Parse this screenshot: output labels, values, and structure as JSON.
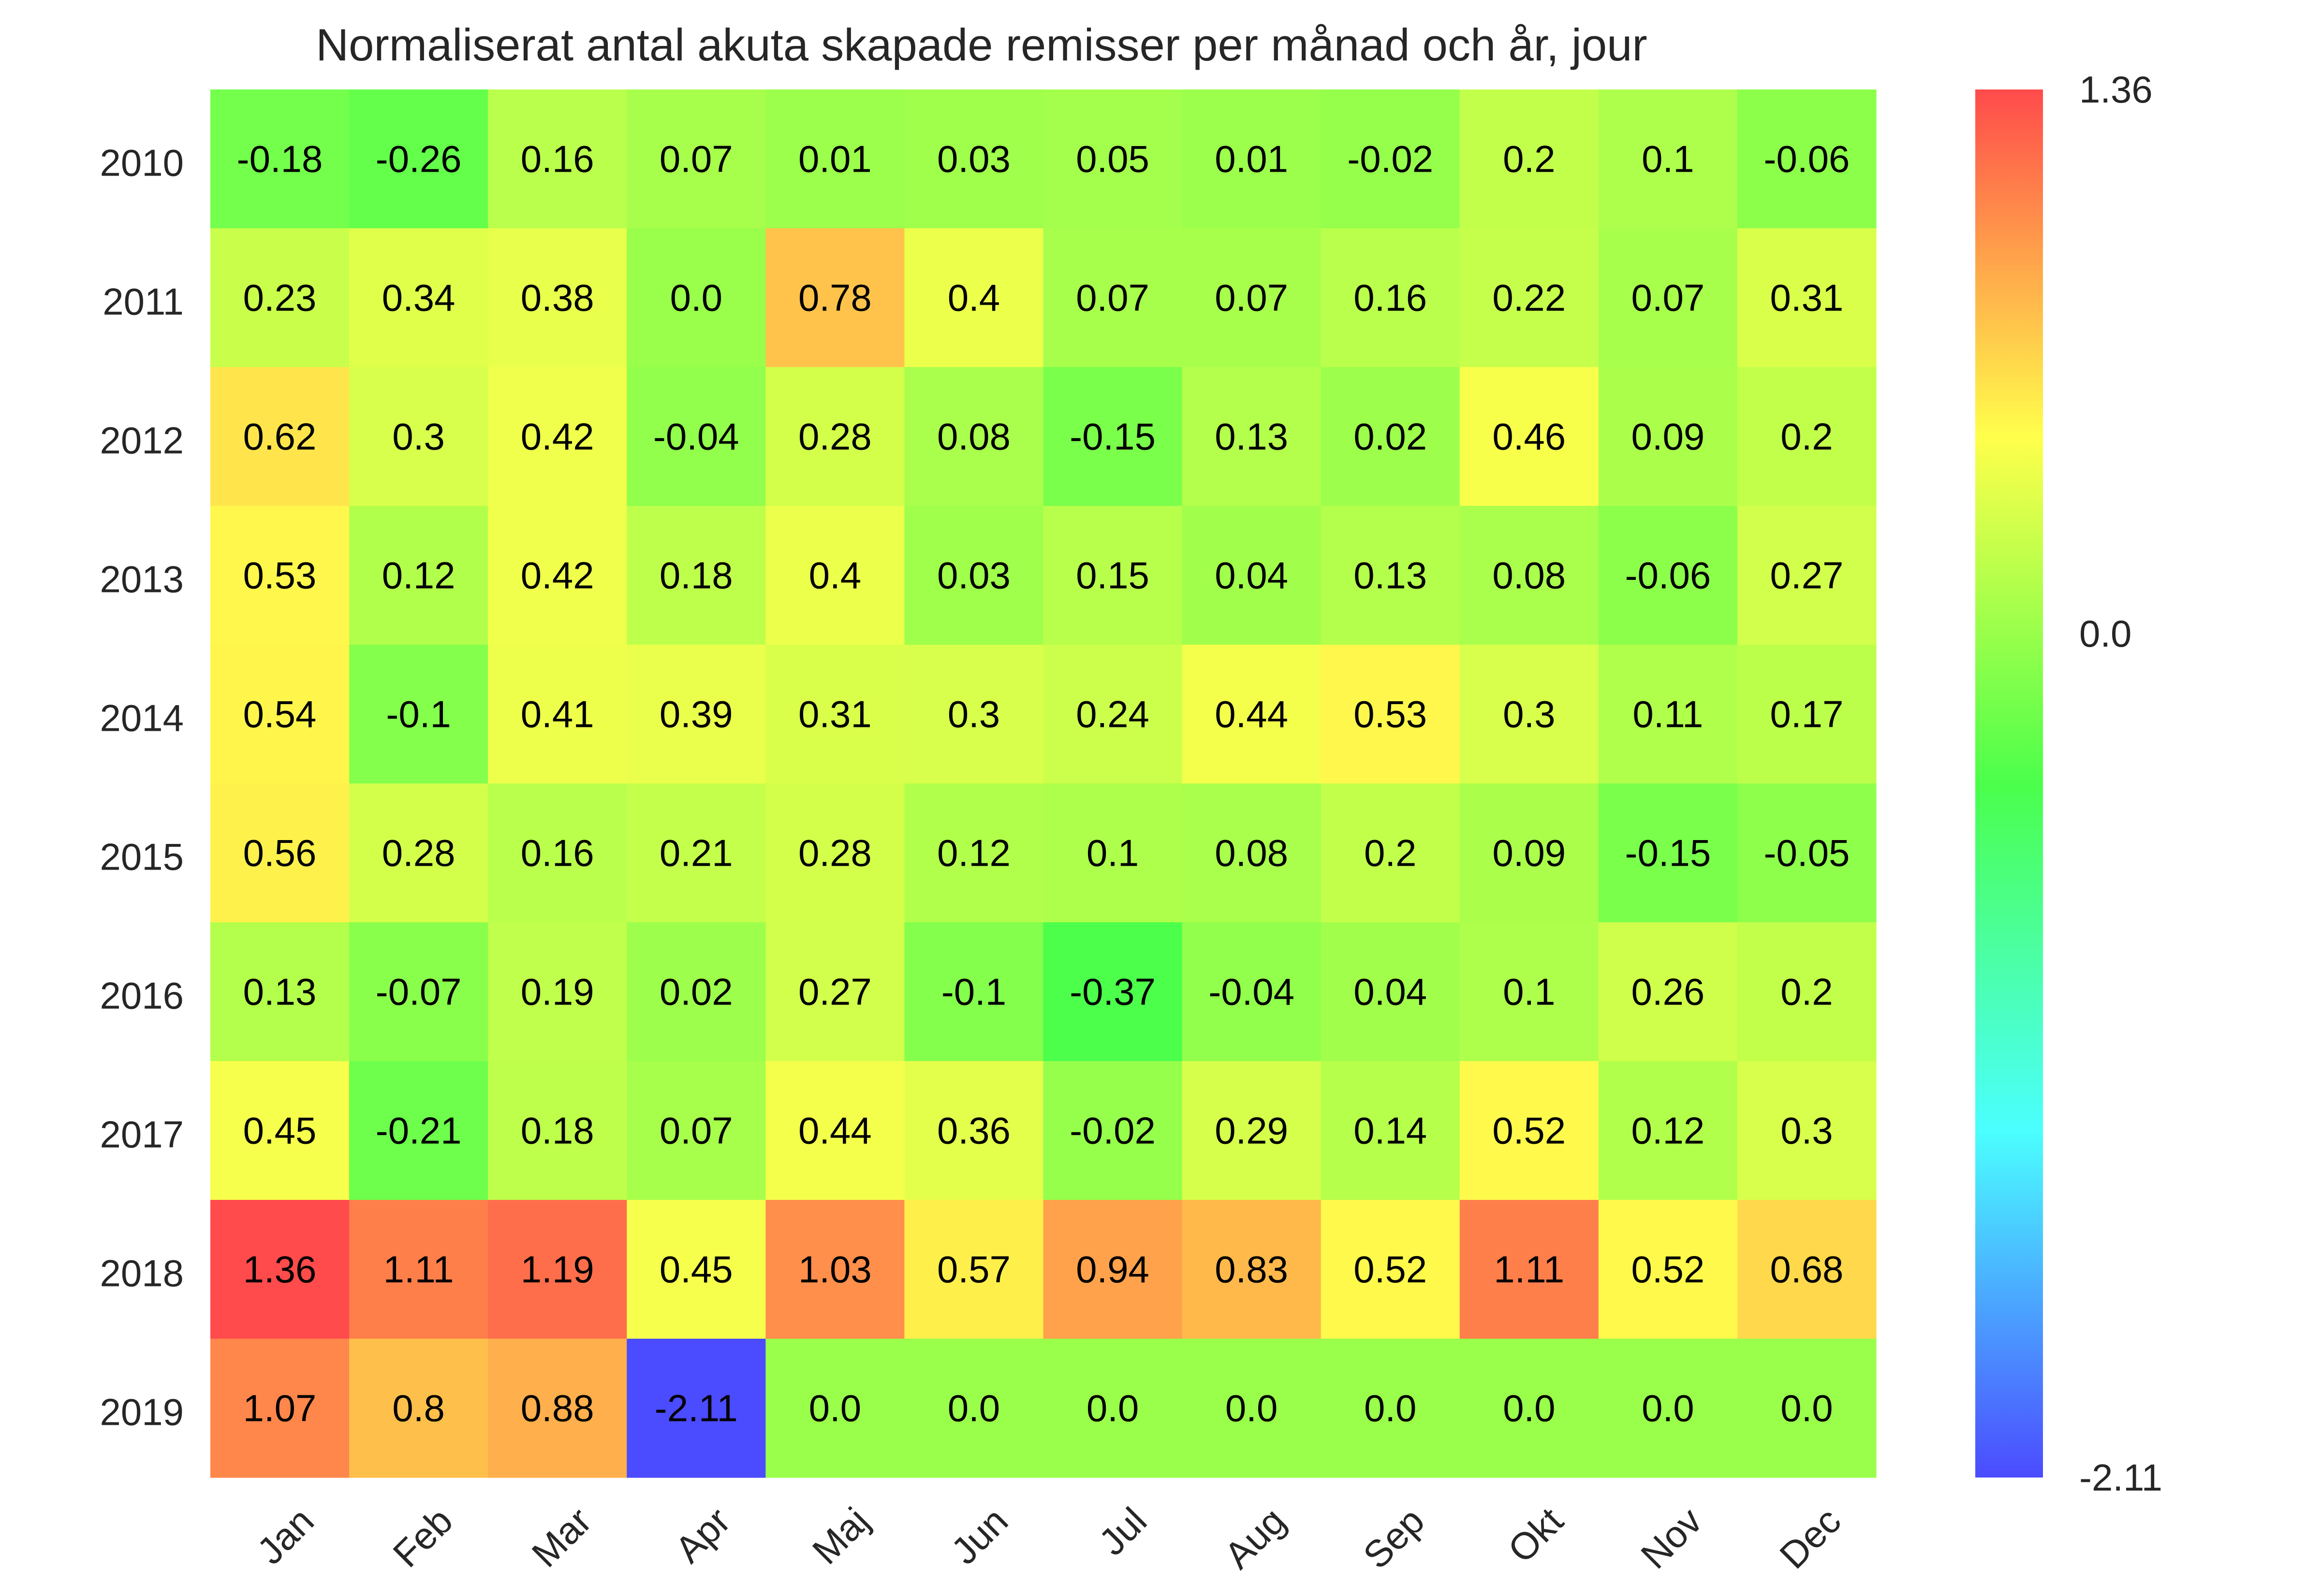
{
  "chart_data": {
    "type": "heatmap",
    "title": "Normaliserat antal akuta skapade remisser per månad och år, jour",
    "xlabel": "",
    "ylabel": "",
    "x_categories": [
      "Jan",
      "Feb",
      "Mar",
      "Apr",
      "Maj",
      "Jun",
      "Jul",
      "Aug",
      "Sep",
      "Okt",
      "Nov",
      "Dec"
    ],
    "y_categories": [
      "2010",
      "2011",
      "2012",
      "2013",
      "2014",
      "2015",
      "2016",
      "2017",
      "2018",
      "2019"
    ],
    "values": [
      [
        -0.18,
        -0.26,
        0.16,
        0.07,
        0.01,
        0.03,
        0.05,
        0.01,
        -0.02,
        0.2,
        0.1,
        -0.06
      ],
      [
        0.23,
        0.34,
        0.38,
        0.0,
        0.78,
        0.4,
        0.07,
        0.07,
        0.16,
        0.22,
        0.07,
        0.31
      ],
      [
        0.62,
        0.3,
        0.42,
        -0.04,
        0.28,
        0.08,
        -0.15,
        0.13,
        0.02,
        0.46,
        0.09,
        0.2
      ],
      [
        0.53,
        0.12,
        0.42,
        0.18,
        0.4,
        0.03,
        0.15,
        0.04,
        0.13,
        0.08,
        -0.06,
        0.27
      ],
      [
        0.54,
        -0.1,
        0.41,
        0.39,
        0.31,
        0.3,
        0.24,
        0.44,
        0.53,
        0.3,
        0.11,
        0.17
      ],
      [
        0.56,
        0.28,
        0.16,
        0.21,
        0.28,
        0.12,
        0.1,
        0.08,
        0.2,
        0.09,
        -0.15,
        -0.05
      ],
      [
        0.13,
        -0.07,
        0.19,
        0.02,
        0.27,
        -0.1,
        -0.37,
        -0.04,
        0.04,
        0.1,
        0.26,
        0.2
      ],
      [
        0.45,
        -0.21,
        0.18,
        0.07,
        0.44,
        0.36,
        -0.02,
        0.29,
        0.14,
        0.52,
        0.12,
        0.3
      ],
      [
        1.36,
        1.11,
        1.19,
        0.45,
        1.03,
        0.57,
        0.94,
        0.83,
        0.52,
        1.11,
        0.52,
        0.68
      ],
      [
        1.07,
        0.8,
        0.88,
        -2.11,
        0.0,
        0.0,
        0.0,
        0.0,
        0.0,
        0.0,
        0.0,
        0.0
      ]
    ],
    "value_labels": [
      [
        "-0.18",
        "-0.26",
        "0.16",
        "0.07",
        "0.01",
        "0.03",
        "0.05",
        "0.01",
        "-0.02",
        "0.2",
        "0.1",
        "-0.06"
      ],
      [
        "0.23",
        "0.34",
        "0.38",
        "0.0",
        "0.78",
        "0.4",
        "0.07",
        "0.07",
        "0.16",
        "0.22",
        "0.07",
        "0.31"
      ],
      [
        "0.62",
        "0.3",
        "0.42",
        "-0.04",
        "0.28",
        "0.08",
        "-0.15",
        "0.13",
        "0.02",
        "0.46",
        "0.09",
        "0.2"
      ],
      [
        "0.53",
        "0.12",
        "0.42",
        "0.18",
        "0.4",
        "0.03",
        "0.15",
        "0.04",
        "0.13",
        "0.08",
        "-0.06",
        "0.27"
      ],
      [
        "0.54",
        "-0.1",
        "0.41",
        "0.39",
        "0.31",
        "0.3",
        "0.24",
        "0.44",
        "0.53",
        "0.3",
        "0.11",
        "0.17"
      ],
      [
        "0.56",
        "0.28",
        "0.16",
        "0.21",
        "0.28",
        "0.12",
        "0.1",
        "0.08",
        "0.2",
        "0.09",
        "-0.15",
        "-0.05"
      ],
      [
        "0.13",
        "-0.07",
        "0.19",
        "0.02",
        "0.27",
        "-0.1",
        "-0.37",
        "-0.04",
        "0.04",
        "0.1",
        "0.26",
        "0.2"
      ],
      [
        "0.45",
        "-0.21",
        "0.18",
        "0.07",
        "0.44",
        "0.36",
        "-0.02",
        "0.29",
        "0.14",
        "0.52",
        "0.12",
        "0.3"
      ],
      [
        "1.36",
        "1.11",
        "1.19",
        "0.45",
        "1.03",
        "0.57",
        "0.94",
        "0.83",
        "0.52",
        "1.11",
        "0.52",
        "0.68"
      ],
      [
        "1.07",
        "0.8",
        "0.88",
        "-2.11",
        "0.0",
        "0.0",
        "0.0",
        "0.0",
        "0.0",
        "0.0",
        "0.0",
        "0.0"
      ]
    ],
    "colorbar": {
      "min": -2.11,
      "max": 1.36,
      "ticks": [
        1.36,
        0.0,
        -2.11
      ],
      "tick_labels": [
        "1.36",
        "0.0",
        "-2.11"
      ],
      "colormap": [
        "#4b4bff",
        "#4bffff",
        "#4bff4b",
        "#ffff4b",
        "#ff4b4b"
      ]
    },
    "grid": false
  }
}
